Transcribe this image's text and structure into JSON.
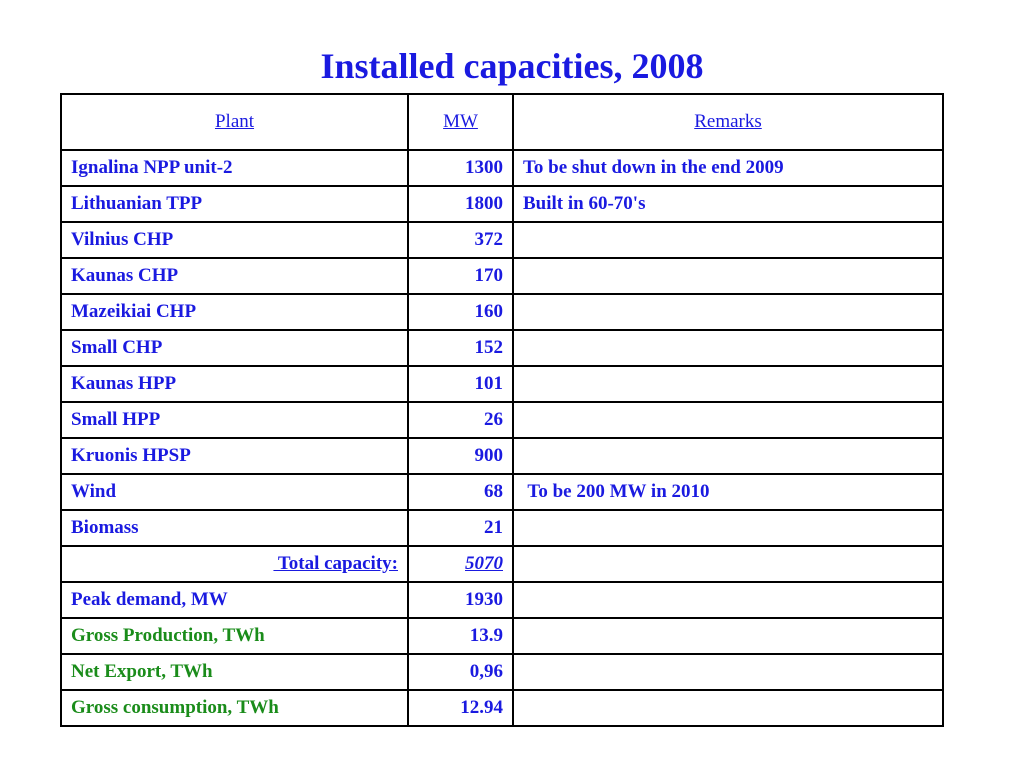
{
  "title": "Installed capacities, 2008",
  "table": {
    "headers": [
      "Plant",
      "MW",
      "Remarks"
    ],
    "rows": [
      {
        "plant": "Ignalina NPP unit-2",
        "mw": "1300",
        "remarks": "To be shut down in the end 2009"
      },
      {
        "plant": "Lithuanian TPP",
        "mw": "1800",
        "remarks": "Built in 60-70's"
      },
      {
        "plant": "Vilnius CHP",
        "mw": "372",
        "remarks": ""
      },
      {
        "plant": "Kaunas CHP",
        "mw": "170",
        "remarks": ""
      },
      {
        "plant": "Mazeikiai CHP",
        "mw": "160",
        "remarks": ""
      },
      {
        "plant": "Small CHP",
        "mw": "152",
        "remarks": ""
      },
      {
        "plant": "Kaunas HPP",
        "mw": "101",
        "remarks": ""
      },
      {
        "plant": "Small HPP",
        "mw": "26",
        "remarks": ""
      },
      {
        "plant": "Kruonis HPSP",
        "mw": "900",
        "remarks": ""
      },
      {
        "plant": "Wind",
        "mw": "68",
        "remarks": " To be 200 MW in 2010"
      },
      {
        "plant": "Biomass",
        "mw": "21",
        "remarks": ""
      }
    ],
    "total": {
      "label": " Total capacity:",
      "value": "5070"
    },
    "summary_rows": [
      {
        "label": "Peak demand, MW",
        "value": "1930",
        "color": "blue"
      },
      {
        "label": "Gross Production, TWh",
        "value": "13.9",
        "color": "green"
      },
      {
        "label": "Net Export, TWh",
        "value": "0,96",
        "color": "green"
      },
      {
        "label": "Gross consumption, TWh",
        "value": "12.94",
        "color": "green"
      }
    ]
  },
  "colors": {
    "title": "#1a1ae0",
    "text_blue": "#1a1ae0",
    "text_green": "#1a8c1a",
    "border": "#000000"
  }
}
